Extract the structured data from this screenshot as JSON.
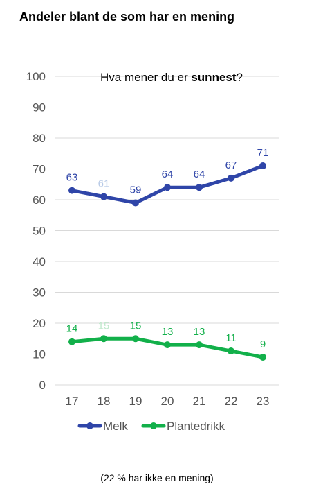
{
  "chart_data": {
    "type": "line",
    "title": "Andeler blant de som har en mening",
    "subtitle": {
      "prefix": "Hva mener du er ",
      "bold": "sunnest",
      "suffix": "?"
    },
    "categories": [
      "17",
      "18",
      "19",
      "20",
      "21",
      "22",
      "23"
    ],
    "ylim": [
      0,
      100
    ],
    "yticks": [
      0,
      10,
      20,
      30,
      40,
      50,
      60,
      70,
      80,
      90,
      100
    ],
    "grid": true,
    "legend_position": "bottom",
    "series": [
      {
        "name": "Melk",
        "color": "#2f45a8",
        "values": [
          63,
          61,
          59,
          64,
          64,
          67,
          71
        ],
        "label_colors": [
          "#2f45a8",
          "#b7c9e6",
          "#2f45a8",
          "#2f45a8",
          "#2f45a8",
          "#2f45a8",
          "#2f45a8"
        ]
      },
      {
        "name": "Plantedrikk",
        "color": "#12b04a",
        "values": [
          14,
          15,
          15,
          13,
          13,
          11,
          9
        ],
        "label_colors": [
          "#12b04a",
          "#bfe8cb",
          "#12b04a",
          "#12b04a",
          "#12b04a",
          "#12b04a",
          "#12b04a"
        ]
      }
    ],
    "footnote": "(22 % har ikke en mening)"
  }
}
